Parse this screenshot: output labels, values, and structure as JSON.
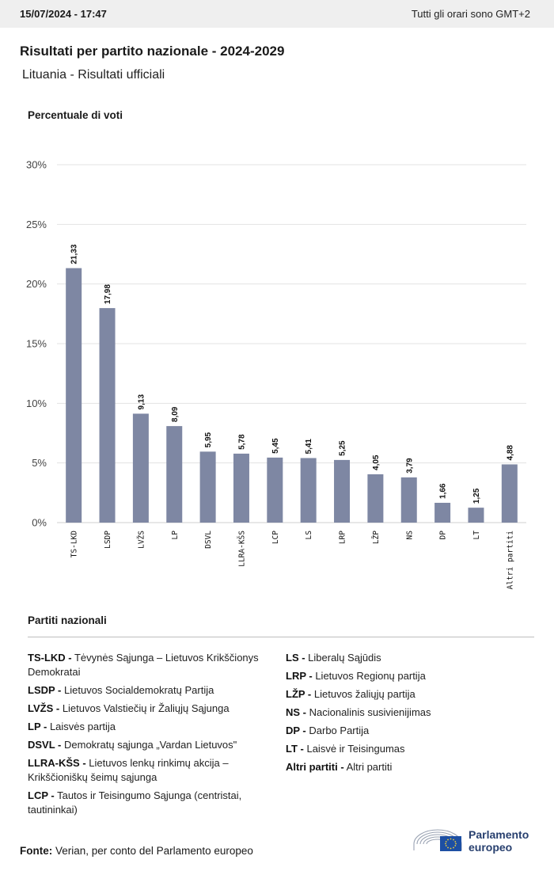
{
  "header": {
    "timestamp": "15/07/2024 - 17:47",
    "timezone_note": "Tutti gli orari sono GMT+2"
  },
  "title": "Risultati per partito nazionale - 2024-2029",
  "subtitle": "Lituania - Risultati ufficiali",
  "y_axis_title": "Percentuale di voti",
  "colors": {
    "bar": "#7e87a3",
    "grid": "#e3e3e3",
    "logo": "#28406f"
  },
  "chart_data": {
    "type": "bar",
    "title": "Percentuale di voti",
    "categories": [
      "TS-LKD",
      "LSDP",
      "LVŽS",
      "LP",
      "DSVL",
      "LLRA-KŠS",
      "LCP",
      "LS",
      "LRP",
      "LŽP",
      "NS",
      "DP",
      "LT",
      "Altri partiti"
    ],
    "values": [
      21.33,
      17.98,
      9.13,
      8.09,
      5.95,
      5.78,
      5.45,
      5.41,
      5.25,
      4.05,
      3.79,
      1.66,
      1.25,
      4.88
    ],
    "value_labels": [
      "21,33",
      "17,98",
      "9,13",
      "8,09",
      "5,95",
      "5,78",
      "5,45",
      "5,41",
      "5,25",
      "4,05",
      "3,79",
      "1,66",
      "1,25",
      "4,88"
    ],
    "ylim": [
      0,
      30
    ],
    "yticks": [
      0,
      5,
      10,
      15,
      20,
      25,
      30
    ],
    "ytick_labels": [
      "0%",
      "5%",
      "10%",
      "15%",
      "20%",
      "25%",
      "30%"
    ],
    "grid": true
  },
  "legend": {
    "title": "Partiti nazionali",
    "column1": [
      {
        "abbr": "TS-LKD -",
        "name": "Tėvynės Sąjunga – Lietuvos Krikščionys Demokratai"
      },
      {
        "abbr": "LSDP -",
        "name": "Lietuvos Socialdemokratų Partija"
      },
      {
        "abbr": "LVŽS -",
        "name": "Lietuvos Valstiečių ir Žaliųjų Sąjunga"
      },
      {
        "abbr": "LP -",
        "name": "Laisvės partija"
      },
      {
        "abbr": "DSVL -",
        "name": "Demokratų sąjunga „Vardan Lietuvos\""
      },
      {
        "abbr": "LLRA-KŠS -",
        "name": "Lietuvos lenkų rinkimų akcija – Krikščioniškų šeimų sąjunga"
      },
      {
        "abbr": "LCP -",
        "name": "Tautos ir Teisingumo Sąjunga (centristai, tautininkai)"
      }
    ],
    "column2": [
      {
        "abbr": "LS -",
        "name": "Liberalų Sąjūdis"
      },
      {
        "abbr": "LRP -",
        "name": "Lietuvos Regionų partija"
      },
      {
        "abbr": "LŽP -",
        "name": "Lietuvos žaliųjų partija"
      },
      {
        "abbr": "NS -",
        "name": "Nacionalinis susivienijimas"
      },
      {
        "abbr": "DP -",
        "name": "Darbo Partija"
      },
      {
        "abbr": "LT -",
        "name": "Laisvė ir Teisingumas"
      },
      {
        "abbr": "Altri partiti -",
        "name": "Altri partiti"
      }
    ]
  },
  "footer": {
    "source_label": "Fonte:",
    "source_text": " Verian, per conto del Parlamento europeo"
  },
  "logo": {
    "line1": "Parlamento",
    "line2": "europeo",
    "icon": "european-parliament-logo-icon"
  }
}
